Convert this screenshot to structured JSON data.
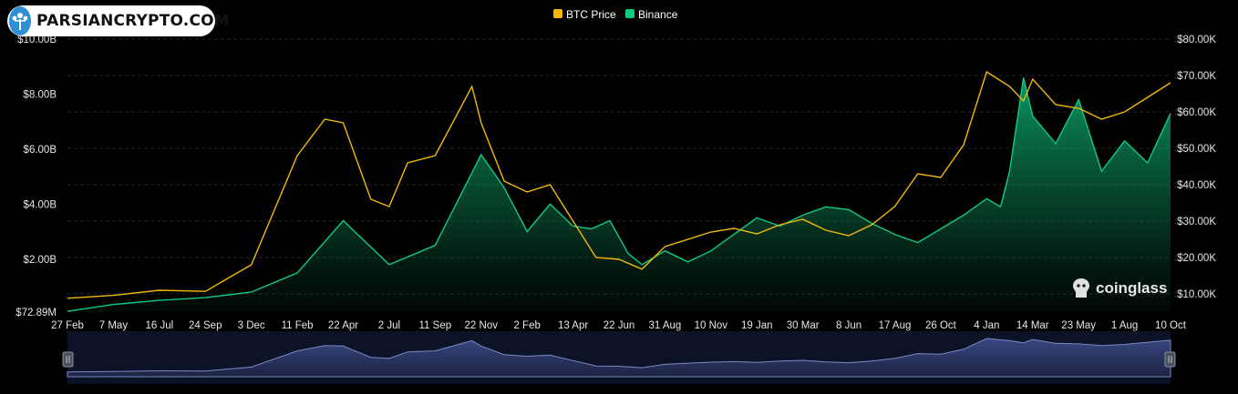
{
  "brand": {
    "site_name": "PARSIANCRYPTO.COM",
    "watermark": "coinglass"
  },
  "colors": {
    "btc": "#f0b90b",
    "binance": "#0ecb81",
    "background": "#000000",
    "navigator": "#27325a"
  },
  "chart_data": {
    "type": "area",
    "legend": [
      {
        "name": "BTC Price",
        "color": "#f0b90b"
      },
      {
        "name": "Binance",
        "color": "#0ecb81"
      }
    ],
    "legend_position": "top-center",
    "grid": true,
    "x_tick_labels": [
      "27 Feb",
      "7 May",
      "16 Jul",
      "24 Sep",
      "3 Dec",
      "11 Feb",
      "22 Apr",
      "2 Jul",
      "11 Sep",
      "22 Nov",
      "2 Feb",
      "13 Apr",
      "22 Jun",
      "31 Aug",
      "10 Nov",
      "19 Jan",
      "30 Mar",
      "8 Jun",
      "17 Aug",
      "26 Oct",
      "4 Jan",
      "14 Mar",
      "23 May",
      "1 Aug",
      "10 Oct"
    ],
    "y_left": {
      "tick_labels": [
        "$72.89M",
        "$2.00B",
        "$4.00B",
        "$6.00B",
        "$8.00B",
        "$10.00B"
      ],
      "tick_values": [
        0.07289,
        2,
        4,
        6,
        8,
        10
      ],
      "range": [
        0.07289,
        10
      ]
    },
    "y_right": {
      "tick_labels": [
        "$10.00K",
        "$20.00K",
        "$30.00K",
        "$40.00K",
        "$50.00K",
        "$60.00K",
        "$70.00K",
        "$80.00K"
      ],
      "tick_values": [
        10000,
        20000,
        30000,
        40000,
        50000,
        60000,
        70000,
        80000
      ],
      "range": [
        5000,
        80000
      ]
    },
    "series": [
      {
        "name": "Binance",
        "axis": "left",
        "unit": "USD billions",
        "x": [
          0,
          1,
          2,
          3,
          4,
          5,
          6,
          7,
          8,
          9,
          9.5,
          10,
          10.5,
          11,
          11.4,
          11.8,
          12.2,
          12.5,
          13,
          13.5,
          14,
          14.5,
          15,
          15.5,
          16,
          16.5,
          17,
          17.5,
          18,
          18.5,
          19,
          19.5,
          20,
          20.3,
          20.5,
          20.8,
          21,
          21.5,
          22,
          22.5,
          23,
          23.5,
          24
        ],
        "values": [
          0.1,
          0.35,
          0.5,
          0.6,
          0.8,
          1.5,
          3.4,
          1.8,
          2.5,
          5.8,
          4.6,
          3.0,
          4.0,
          3.2,
          3.1,
          3.4,
          2.2,
          1.8,
          2.3,
          1.9,
          2.3,
          2.9,
          3.5,
          3.2,
          3.6,
          3.9,
          3.8,
          3.3,
          2.9,
          2.6,
          3.1,
          3.6,
          4.2,
          3.9,
          5.2,
          8.6,
          7.2,
          6.2,
          7.8,
          5.2,
          6.3,
          5.5,
          7.3
        ]
      },
      {
        "name": "BTC Price",
        "axis": "right",
        "unit": "USD",
        "x": [
          0,
          1,
          2,
          3,
          4,
          5,
          5.6,
          6,
          6.6,
          7,
          7.4,
          8,
          8.8,
          9,
          9.5,
          10,
          10.5,
          11,
          11.5,
          12,
          12.5,
          13,
          14,
          14.5,
          15,
          15.5,
          16,
          16.5,
          17,
          17.5,
          18,
          18.5,
          19,
          19.5,
          20,
          20.5,
          20.8,
          21,
          21.5,
          22,
          22.5,
          23,
          23.5,
          24
        ],
        "values": [
          8800,
          9600,
          11000,
          10700,
          18000,
          48000,
          58000,
          57000,
          36000,
          34000,
          46000,
          48000,
          67000,
          57000,
          41000,
          38000,
          40000,
          30000,
          20000,
          19500,
          16800,
          23000,
          27000,
          28000,
          26500,
          29000,
          30500,
          27500,
          26000,
          29000,
          34000,
          43000,
          42000,
          51000,
          71000,
          67000,
          63000,
          69000,
          62000,
          61000,
          58000,
          60000,
          64000,
          68000
        ]
      }
    ]
  }
}
